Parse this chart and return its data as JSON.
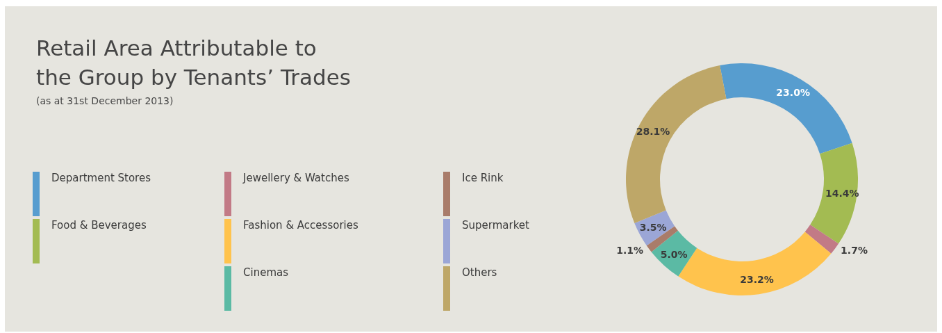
{
  "chart_data": {
    "type": "donut",
    "title": "Retail Area Attributable to\nthe Group by Tenants’ Trades",
    "subtitle": "(as at 31st December 2013)",
    "categories": [
      "Department Stores",
      "Food & Beverages",
      "Jewellery & Watches",
      "Fashion & Accessories",
      "Cinemas",
      "Ice Rink",
      "Supermarket",
      "Others"
    ],
    "values": [
      23.0,
      14.4,
      1.7,
      23.2,
      5.0,
      1.1,
      3.5,
      28.1
    ],
    "colors": [
      "#579dcf",
      "#a3bb52",
      "#c27a86",
      "#ffc34d",
      "#5bbaa4",
      "#a97c6a",
      "#9ba6d6",
      "#bea768"
    ],
    "value_labels": [
      "23.0%",
      "14.4%",
      "1.7%",
      "23.2%",
      "5.0%",
      "1.1%",
      "3.5%",
      "28.1%"
    ],
    "legend": "left"
  }
}
